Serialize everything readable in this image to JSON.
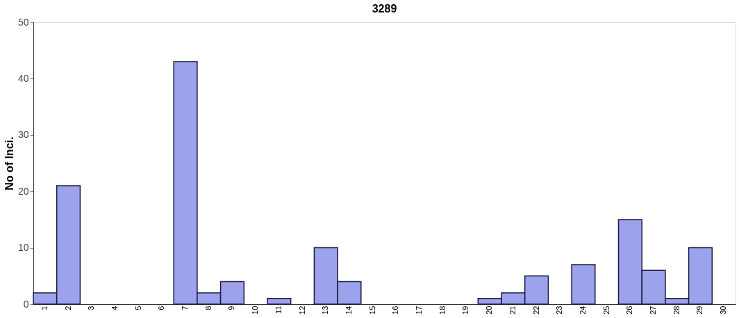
{
  "chart_data": {
    "type": "bar",
    "title": "3289",
    "ylabel": "No of Inci.",
    "categories": [
      "1",
      "2",
      "3",
      "4",
      "5",
      "6",
      "7",
      "8",
      "9",
      "10",
      "11",
      "12",
      "13",
      "14",
      "15",
      "16",
      "17",
      "18",
      "19",
      "20",
      "21",
      "22",
      "23",
      "24",
      "25",
      "26",
      "27",
      "28",
      "29",
      "30"
    ],
    "values": [
      2,
      21,
      0,
      0,
      0,
      0,
      43,
      2,
      4,
      0,
      1,
      0,
      10,
      4,
      0,
      0,
      0,
      0,
      0,
      1,
      2,
      5,
      0,
      7,
      0,
      15,
      6,
      1,
      10,
      0
    ],
    "color": "#9ca2ec",
    "ylim": [
      0,
      50
    ],
    "yticks": [
      0,
      10,
      20,
      30,
      40,
      50
    ],
    "grid": false
  }
}
